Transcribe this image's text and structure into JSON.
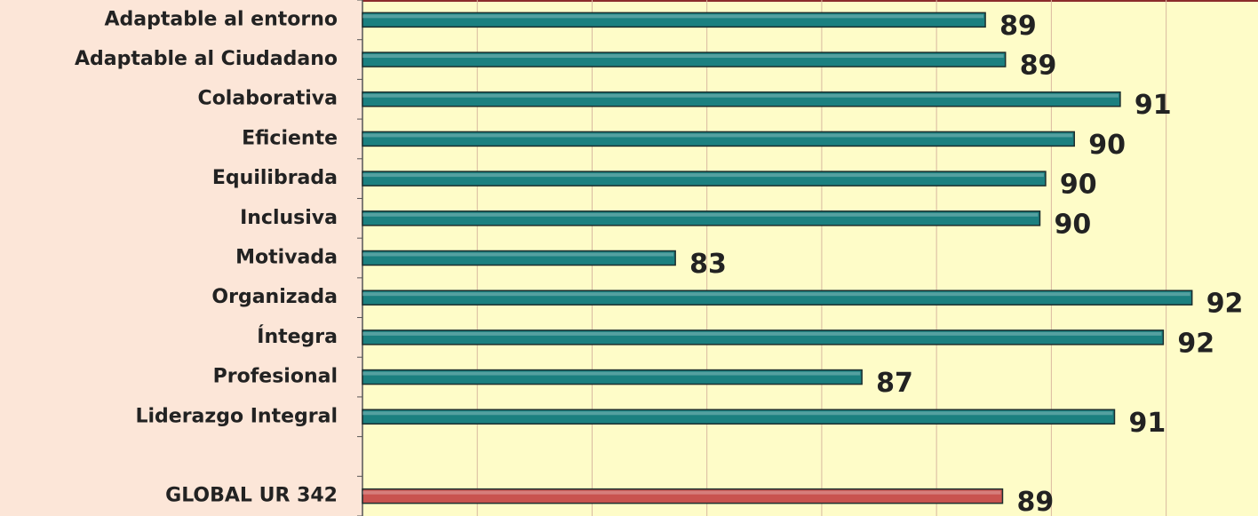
{
  "chart_data": {
    "type": "bar",
    "orientation": "horizontal",
    "categories": [
      "Adaptable al entorno",
      "Adaptable al Ciudadano",
      "Colaborativa",
      "Eficiente",
      "Equilibrada",
      "Inclusiva",
      "Motivada",
      "Organizada",
      "Íntegra",
      "Profesional",
      "Liderazgo Integral",
      null,
      "GLOBAL UR 342"
    ],
    "values": [
      88.85,
      89.2,
      91.2,
      90.4,
      89.9,
      89.8,
      83.45,
      92.45,
      91.95,
      86.7,
      91.1,
      null,
      89.15
    ],
    "value_labels": [
      "89",
      "89",
      "91",
      "90",
      "90",
      "90",
      "83",
      "92",
      "92",
      "87",
      "91",
      null,
      "89"
    ],
    "colors": [
      "#1b8080",
      "#1b8080",
      "#1b8080",
      "#1b8080",
      "#1b8080",
      "#1b8080",
      "#1b8080",
      "#1b8080",
      "#1b8080",
      "#1b8080",
      "#1b8080",
      null,
      "#c9534f"
    ],
    "xlim": [
      78,
      93.6
    ],
    "xticks": [
      80,
      82,
      84,
      86,
      88,
      90,
      92
    ],
    "grid": true
  }
}
